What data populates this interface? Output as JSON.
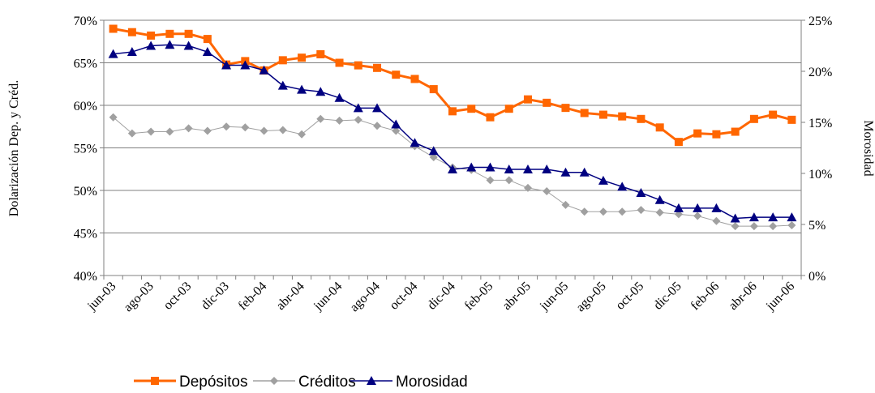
{
  "chart_data": {
    "type": "line",
    "categories": [
      "jun-03",
      null,
      "ago-03",
      null,
      "oct-03",
      null,
      "dic-03",
      null,
      "feb-04",
      null,
      "abr-04",
      null,
      "jun-04",
      null,
      "ago-04",
      null,
      "oct-04",
      null,
      "dic-04",
      null,
      "feb-05",
      null,
      "abr-05",
      null,
      "jun-05",
      null,
      "ago-05",
      null,
      "oct-05",
      null,
      "dic-05",
      null,
      "feb-06",
      null,
      "abr-06",
      null,
      "jun-06"
    ],
    "ylabel": "Dolarización Dep. y Créd.",
    "y2label": "Morosidad",
    "ylim": [
      40,
      70
    ],
    "yticks": [
      {
        "value": 40,
        "label": "40%"
      },
      {
        "value": 45,
        "label": "45%"
      },
      {
        "value": 50,
        "label": "50%"
      },
      {
        "value": 55,
        "label": "55%"
      },
      {
        "value": 60,
        "label": "60%"
      },
      {
        "value": 65,
        "label": "65%"
      },
      {
        "value": 70,
        "label": "70%"
      }
    ],
    "y2lim": [
      0,
      25
    ],
    "y2ticks": [
      {
        "value": 0,
        "label": "0%"
      },
      {
        "value": 5,
        "label": "5%"
      },
      {
        "value": 10,
        "label": "10%"
      },
      {
        "value": 15,
        "label": "15%"
      },
      {
        "value": 20,
        "label": "20%"
      },
      {
        "value": 25,
        "label": "25%"
      }
    ],
    "grid": true,
    "legend": "bottom",
    "series": [
      {
        "name": "Depósitos",
        "color": "#ff6600",
        "marker": "square",
        "values": [
          69.0,
          68.6,
          68.2,
          68.4,
          68.4,
          67.8,
          64.8,
          65.2,
          64.1,
          65.3,
          65.6,
          66.0,
          65.0,
          64.7,
          64.4,
          63.6,
          63.1,
          61.9,
          59.3,
          59.6,
          58.6,
          59.6,
          60.7,
          60.3,
          59.7,
          59.1,
          58.9,
          58.7,
          58.4,
          57.4,
          55.7,
          56.7,
          56.6,
          56.9,
          58.4,
          58.9,
          58.3
        ]
      },
      {
        "name": "Créditos",
        "color": "#a0a0a0",
        "marker": "diamond",
        "values": [
          58.6,
          56.7,
          56.9,
          56.9,
          57.3,
          57.0,
          57.5,
          57.4,
          57.0,
          57.1,
          56.6,
          58.4,
          58.2,
          58.3,
          57.6,
          57.0,
          55.2,
          53.9,
          52.7,
          52.4,
          51.2,
          51.2,
          50.3,
          49.9,
          48.3,
          47.5,
          47.5,
          47.5,
          47.7,
          47.4,
          47.2,
          47.0,
          46.4,
          45.8,
          45.8,
          45.8,
          45.9
        ]
      },
      {
        "name": "Morosidad",
        "color": "#000080",
        "marker": "triangle",
        "axis": "y2",
        "values": [
          21.7,
          21.9,
          22.5,
          22.6,
          22.5,
          21.9,
          20.6,
          20.6,
          20.1,
          18.6,
          18.2,
          18.0,
          17.4,
          16.4,
          16.4,
          14.8,
          13.0,
          12.2,
          10.4,
          10.6,
          10.6,
          10.4,
          10.4,
          10.4,
          10.1,
          10.1,
          9.3,
          8.7,
          8.1,
          7.4,
          6.6,
          6.6,
          6.6,
          5.6,
          5.7,
          5.7,
          5.7
        ]
      }
    ]
  }
}
